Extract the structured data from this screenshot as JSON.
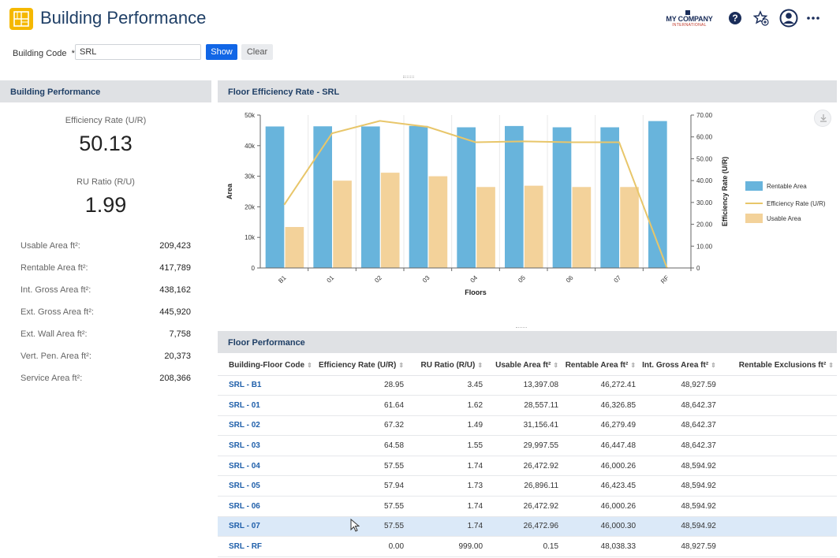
{
  "app": {
    "title": "Building Performance",
    "brand_name": "MY COMPANY",
    "brand_sub": "INTERNATIONAL"
  },
  "filter": {
    "label": "Building Code",
    "required_mark": "*",
    "value": "SRL",
    "show_label": "Show",
    "clear_label": "Clear"
  },
  "left_panel": {
    "title": "Building Performance",
    "efficiency_label": "Efficiency Rate (U/R)",
    "efficiency_value": "50.13",
    "ru_label": "RU Ratio (R/U)",
    "ru_value": "1.99",
    "stats": [
      {
        "label": "Usable Area ft²:",
        "value": "209,423"
      },
      {
        "label": "Rentable Area ft²:",
        "value": "417,789"
      },
      {
        "label": "Int. Gross Area ft²:",
        "value": "438,162"
      },
      {
        "label": "Ext. Gross Area ft²:",
        "value": "445,920"
      },
      {
        "label": "Ext. Wall Area ft²:",
        "value": "7,758"
      },
      {
        "label": "Vert. Pen. Area ft²:",
        "value": "20,373"
      },
      {
        "label": "Service Area ft²:",
        "value": "208,366"
      }
    ]
  },
  "chart_panel": {
    "title": "Floor Efficiency Rate - SRL"
  },
  "chart_data": {
    "type": "bar",
    "categories": [
      "B1",
      "01",
      "02",
      "03",
      "04",
      "05",
      "06",
      "07",
      "RF"
    ],
    "series": [
      {
        "name": "Rentable Area",
        "kind": "bar",
        "axis": "left",
        "color": "#68b4dc",
        "values": [
          46272.41,
          46326.85,
          46279.49,
          46447.48,
          46000.26,
          46423.45,
          46000.26,
          46000.3,
          48038.33
        ]
      },
      {
        "name": "Usable Area",
        "kind": "bar",
        "axis": "left",
        "color": "#f3d29a",
        "values": [
          13397.08,
          28557.11,
          31156.41,
          29997.55,
          26472.92,
          26896.11,
          26472.92,
          26472.96,
          0.15
        ]
      },
      {
        "name": "Efficiency Rate (U/R)",
        "kind": "line",
        "axis": "right",
        "color": "#e8c66a",
        "values": [
          28.95,
          61.64,
          67.32,
          64.58,
          57.55,
          57.94,
          57.55,
          57.55,
          0.0
        ]
      }
    ],
    "xlabel": "Floors",
    "ylabel": "Area",
    "y2label": "Efficiency Rate (U/R)",
    "ylim": [
      0,
      50000
    ],
    "y2lim": [
      0,
      70
    ],
    "yticks": [
      "0",
      "10k",
      "20k",
      "30k",
      "40k",
      "50k"
    ],
    "y2ticks": [
      "0",
      "10.00",
      "20.00",
      "30.00",
      "40.00",
      "50.00",
      "60.00",
      "70.00"
    ],
    "legend": [
      "Rentable Area",
      "Efficiency Rate (U/R)",
      "Usable Area"
    ],
    "legend_position": "right",
    "grid": true
  },
  "table": {
    "title": "Floor Performance",
    "headers": [
      "Building-Floor Code",
      "Efficiency Rate (U/R)",
      "RU Ratio (R/U)",
      "Usable Area ft²",
      "Rentable Area ft²",
      "Int. Gross Area ft²",
      "Rentable Exclusions ft²"
    ],
    "rows": [
      [
        "SRL - B1",
        "28.95",
        "3.45",
        "13,397.08",
        "46,272.41",
        "48,927.59",
        ""
      ],
      [
        "SRL - 01",
        "61.64",
        "1.62",
        "28,557.11",
        "46,326.85",
        "48,642.37",
        ""
      ],
      [
        "SRL - 02",
        "67.32",
        "1.49",
        "31,156.41",
        "46,279.49",
        "48,642.37",
        ""
      ],
      [
        "SRL - 03",
        "64.58",
        "1.55",
        "29,997.55",
        "46,447.48",
        "48,642.37",
        ""
      ],
      [
        "SRL - 04",
        "57.55",
        "1.74",
        "26,472.92",
        "46,000.26",
        "48,594.92",
        ""
      ],
      [
        "SRL - 05",
        "57.94",
        "1.73",
        "26,896.11",
        "46,423.45",
        "48,594.92",
        ""
      ],
      [
        "SRL - 06",
        "57.55",
        "1.74",
        "26,472.92",
        "46,000.26",
        "48,594.92",
        ""
      ],
      [
        "SRL - 07",
        "57.55",
        "1.74",
        "26,472.96",
        "46,000.30",
        "48,594.92",
        ""
      ],
      [
        "SRL - RF",
        "0.00",
        "999.00",
        "0.15",
        "48,038.33",
        "48,927.59",
        ""
      ]
    ],
    "selected_row": 7
  }
}
